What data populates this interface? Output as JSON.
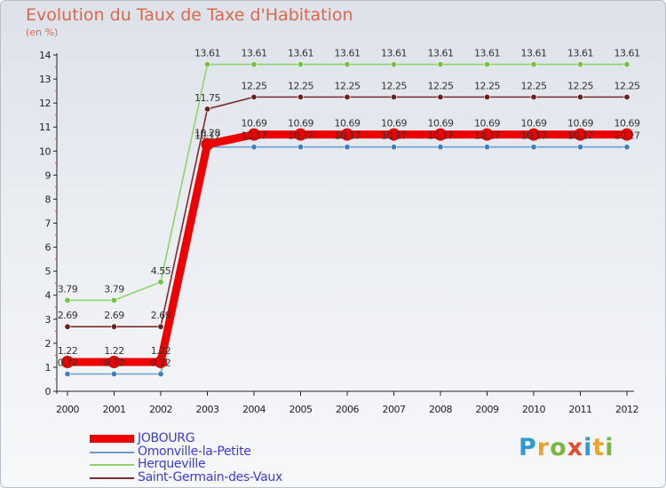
{
  "chart_data": {
    "type": "line",
    "title": "Evolution du Taux de Taxe d'Habitation",
    "unit_label": "(en %)",
    "x": [
      "2000",
      "2001",
      "2002",
      "2003",
      "2004",
      "2005",
      "2006",
      "2007",
      "2008",
      "2009",
      "2010",
      "2011",
      "2012"
    ],
    "ylim": [
      0,
      14
    ],
    "yticks": [
      "0",
      "1",
      "2",
      "3",
      "4",
      "5",
      "6",
      "7",
      "8",
      "9",
      "10",
      "11",
      "12",
      "13",
      "14"
    ],
    "grid": false,
    "series": [
      {
        "name": "Herqueville",
        "color": "#8fd46a",
        "marker_color": "#74c144",
        "values": [
          3.79,
          3.79,
          4.55,
          13.61,
          13.61,
          13.61,
          13.61,
          13.61,
          13.61,
          13.61,
          13.61,
          13.61,
          13.61
        ],
        "labels": [
          "3.79",
          "3.79",
          "4.55",
          "13.61",
          "13.61",
          "13.61",
          "13.61",
          "13.61",
          "13.61",
          "13.61",
          "13.61",
          "13.61",
          "13.61"
        ]
      },
      {
        "name": "Saint-Germain-des-Vaux",
        "color": "#7b2c2c",
        "marker_color": "#6a2020",
        "values": [
          2.69,
          2.69,
          2.69,
          11.75,
          12.25,
          12.25,
          12.25,
          12.25,
          12.25,
          12.25,
          12.25,
          12.25,
          12.25
        ],
        "labels": [
          "2.69",
          "2.69",
          "2.69",
          "11.75",
          "12.25",
          "12.25",
          "12.25",
          "12.25",
          "12.25",
          "12.25",
          "12.25",
          "12.25",
          "12.25"
        ]
      },
      {
        "name": "Omonville-la-Petite",
        "color": "#6f9dc9",
        "marker_color": "#3f7fc0",
        "values": [
          0.72,
          0.72,
          0.72,
          10.17,
          10.17,
          10.17,
          10.17,
          10.17,
          10.17,
          10.17,
          10.17,
          10.17,
          10.17
        ],
        "labels": [
          "0.72",
          "0.72",
          "0.72",
          "10.17",
          "10.17",
          "10.17",
          "10.17",
          "10.17",
          "10.17",
          "10.17",
          "10.17",
          "10.17",
          "10.17"
        ]
      },
      {
        "name": "JOBOURG",
        "color": "#ee0000",
        "marker_color": "#ee0000",
        "values": [
          1.22,
          1.22,
          1.22,
          10.28,
          10.69,
          10.69,
          10.69,
          10.69,
          10.69,
          10.69,
          10.69,
          10.69,
          10.69
        ],
        "labels": [
          "1.22",
          "1.22",
          "1.22",
          "10.28",
          "10.69",
          "10.69",
          "10.69",
          "10.69",
          "10.69",
          "10.69",
          "10.69",
          "10.69",
          "10.69"
        ]
      }
    ],
    "legend": [
      {
        "name": "JOBOURG",
        "color": "#ee0000"
      },
      {
        "name": "Omonville-la-Petite",
        "color": "#6f9dc9"
      },
      {
        "name": "Herqueville",
        "color": "#8fd46a"
      },
      {
        "name": "Saint-Germain-des-Vaux",
        "color": "#7b2c2c"
      }
    ]
  },
  "logo": {
    "text_chars": [
      "P",
      "r",
      "o",
      "x",
      "i",
      "t",
      "i"
    ]
  }
}
